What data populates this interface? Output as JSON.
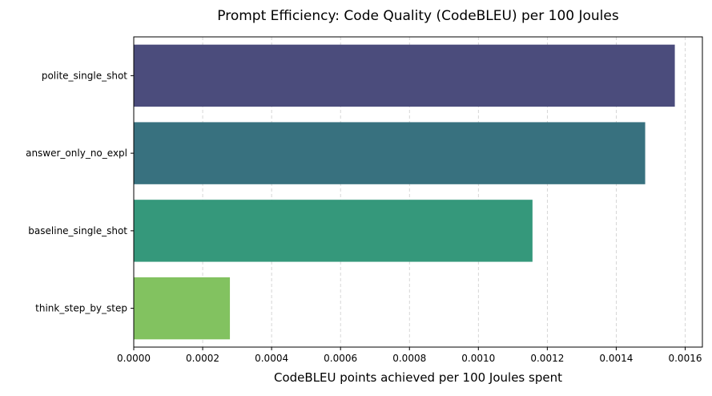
{
  "chart_data": {
    "type": "bar",
    "orientation": "horizontal",
    "title": "Prompt Efficiency: Code Quality (CodeBLEU) per 100 Joules",
    "xlabel": "CodeBLEU points achieved per 100 Joules spent",
    "ylabel": "",
    "categories": [
      "polite_single_shot",
      "answer_only_no_expl",
      "baseline_single_shot",
      "think_step_by_step"
    ],
    "values": [
      0.00157,
      0.001484,
      0.001157,
      0.000279
    ],
    "colors": [
      "#4b4c7c",
      "#38717f",
      "#35987b",
      "#82c260"
    ],
    "xlim": [
      0,
      0.00165
    ],
    "xticks": [
      0,
      0.0002,
      0.0004,
      0.0006,
      0.0008,
      0.001,
      0.0012,
      0.0014,
      0.0016
    ],
    "xtick_labels": [
      "0.0000",
      "0.0002",
      "0.0004",
      "0.0006",
      "0.0008",
      "0.0010",
      "0.0012",
      "0.0014",
      "0.0016"
    ],
    "grid": {
      "axis": "x",
      "style": "dashed",
      "color": "#cccccc"
    }
  }
}
